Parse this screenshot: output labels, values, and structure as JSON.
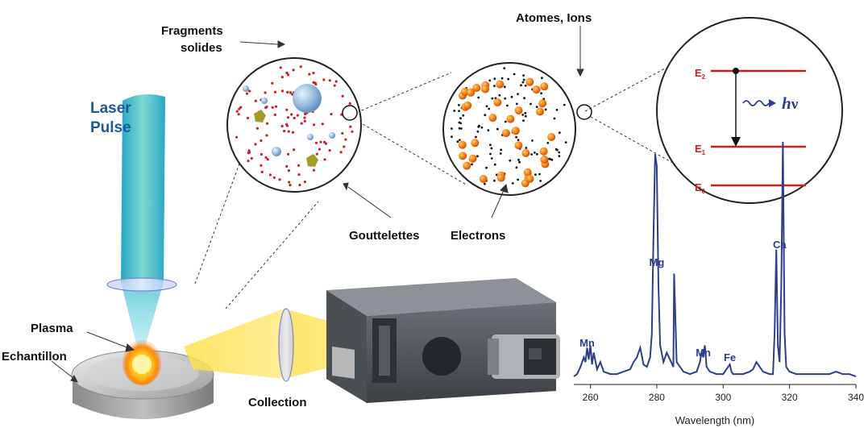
{
  "labels": {
    "laser_line1": "Laser",
    "laser_line2": "Pulse",
    "fragments_line1": "Fragments",
    "fragments_line2": "solides",
    "atoms_ions": "Atomes, Ions",
    "gouttelettes": "Gouttelettes",
    "electrons": "Electrons",
    "plasma": "Plasma",
    "echantillon": "Echantillon",
    "collection": "Collection"
  },
  "energy_levels": {
    "e2": "E",
    "e2_sub": "2",
    "e1": "E",
    "e1_sub": "1",
    "e0": "E",
    "e0_sub": "0",
    "photon_h": "h",
    "photon_nu": "ν"
  },
  "colors": {
    "spectrum": "#2c3e8c",
    "laser": "#5cc8d8",
    "energy_lines": "#d01e1e",
    "particles": "#f07a10",
    "fragments": "#a89a2a"
  },
  "chart_data": {
    "type": "line",
    "xlabel": "Wavelength (nm)",
    "xlim": [
      255,
      340
    ],
    "x_ticks": [
      "260",
      "280",
      "300",
      "320",
      "340"
    ],
    "peak_labels": [
      {
        "text": "Mn",
        "x": 259
      },
      {
        "text": "Mg",
        "x": 280
      },
      {
        "text": "Mn",
        "x": 294
      },
      {
        "text": "Fe",
        "x": 302
      },
      {
        "text": "Ca",
        "x": 317
      }
    ],
    "series": [
      {
        "x": [
          255,
          256,
          257,
          258,
          258.5,
          259,
          259.5,
          260,
          260.5,
          261,
          262,
          263,
          264,
          266,
          268,
          270,
          272,
          273,
          274,
          275,
          276,
          277,
          278,
          278.5,
          279,
          279.5,
          280,
          280.5,
          281,
          282,
          283,
          284,
          285,
          285.2,
          286,
          288,
          290,
          292,
          293,
          293.5,
          294,
          294.5,
          295,
          296,
          298,
          300,
          301,
          302,
          302.5,
          303,
          304,
          306,
          308,
          309,
          310,
          312,
          314,
          315,
          315.5,
          316,
          316.5,
          317,
          317.5,
          318,
          318.5,
          319,
          320,
          322,
          324,
          326,
          328,
          330,
          332,
          334,
          336,
          338,
          340
        ],
        "y": [
          2,
          3,
          6,
          10,
          8,
          14,
          9,
          15,
          7,
          12,
          5,
          8,
          4,
          3,
          3,
          4,
          5,
          8,
          10,
          14,
          7,
          6,
          10,
          20,
          60,
          95,
          90,
          40,
          15,
          8,
          12,
          9,
          6,
          45,
          8,
          4,
          3,
          4,
          8,
          12,
          10,
          15,
          6,
          4,
          3,
          3,
          5,
          7,
          4,
          3,
          3,
          3,
          4,
          5,
          8,
          4,
          3,
          3,
          20,
          55,
          15,
          8,
          40,
          100,
          20,
          6,
          4,
          3,
          3,
          3,
          3,
          3,
          3,
          4,
          3,
          3,
          2
        ]
      }
    ]
  }
}
